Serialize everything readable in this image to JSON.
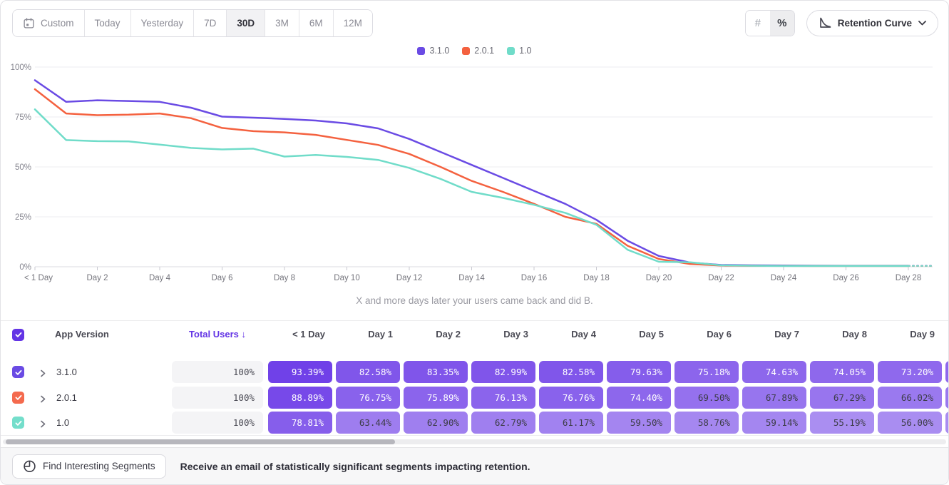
{
  "toolbar": {
    "date_ranges": [
      "Custom",
      "Today",
      "Yesterday",
      "7D",
      "30D",
      "3M",
      "6M",
      "12M"
    ],
    "selected_range": "30D",
    "count_toggle": "#",
    "percent_toggle": "%",
    "percent_selected": true,
    "chart_type_label": "Retention Curve"
  },
  "chart_data": {
    "type": "line",
    "subtitle": "X and more days later your users came back and did B.",
    "ylim": [
      0,
      100
    ],
    "y_ticks": [
      "100%",
      "75%",
      "50%",
      "25%",
      "0%"
    ],
    "x_tick_days": [
      0,
      2,
      4,
      6,
      8,
      10,
      12,
      14,
      16,
      18,
      20,
      22,
      24,
      26,
      28
    ],
    "x_tick_labels": [
      "< 1 Day",
      "Day 2",
      "Day 4",
      "Day 6",
      "Day 8",
      "Day 10",
      "Day 12",
      "Day 14",
      "Day 16",
      "Day 18",
      "Day 20",
      "Day 22",
      "Day 24",
      "Day 26",
      "Day 28"
    ],
    "grid": true,
    "legend_position": "top",
    "dashed_tail_after_day": 28,
    "series": [
      {
        "name": "3.1.0",
        "color": "#6A4BE4",
        "values": [
          93.39,
          82.58,
          83.35,
          82.99,
          82.58,
          79.63,
          75.18,
          74.63,
          74.05,
          73.2,
          71.8,
          69.3,
          64,
          57.5,
          51,
          44.5,
          38,
          31.5,
          23.5,
          13,
          5.4,
          2.1,
          0.9,
          0.7,
          0.6,
          0.55,
          0.5,
          0.5,
          0.5
        ]
      },
      {
        "name": "2.0.1",
        "color": "#F4613F",
        "values": [
          88.89,
          76.75,
          75.89,
          76.13,
          76.76,
          74.4,
          69.5,
          67.89,
          67.29,
          66.02,
          63.5,
          61,
          56.5,
          50,
          43,
          37.5,
          31.5,
          25,
          21.5,
          10.5,
          3.9,
          1.4,
          0.6,
          0.5,
          0.45,
          0.4,
          0.4,
          0.4,
          0.4
        ]
      },
      {
        "name": "1.0",
        "color": "#70DCC9",
        "values": [
          78.81,
          63.44,
          62.9,
          62.79,
          61.17,
          59.5,
          58.76,
          59.14,
          55.19,
          56,
          55,
          53.5,
          49.5,
          44,
          37.5,
          34.5,
          31,
          27,
          21,
          8.5,
          2.5,
          2.2,
          0.7,
          0.5,
          0.4,
          0.4,
          0.4,
          0.4,
          0.4
        ]
      }
    ]
  },
  "table": {
    "select_all_checked": true,
    "headers": {
      "app_version": "App Version",
      "total_users": "Total Users ↓",
      "days": [
        "< 1 Day",
        "Day 1",
        "Day 2",
        "Day 3",
        "Day 4",
        "Day 5",
        "Day 6",
        "Day 7",
        "Day 8",
        "Day 9"
      ]
    },
    "rows": [
      {
        "version": "3.1.0",
        "color": "#6A4BE4",
        "checked": true,
        "total_users": "100%",
        "values": [
          93.39,
          82.58,
          83.35,
          82.99,
          82.58,
          79.63,
          75.18,
          74.63,
          74.05,
          73.2
        ]
      },
      {
        "version": "2.0.1",
        "color": "#F46A4E",
        "checked": true,
        "total_users": "100%",
        "values": [
          88.89,
          76.75,
          75.89,
          76.13,
          76.76,
          74.4,
          69.5,
          67.89,
          67.29,
          66.02
        ]
      },
      {
        "version": "1.0",
        "color": "#74DECB",
        "checked": true,
        "total_users": "100%",
        "values": [
          78.81,
          63.44,
          62.9,
          62.79,
          61.17,
          59.5,
          58.76,
          59.14,
          55.19,
          56
        ]
      }
    ],
    "cell_base_rgb": [
      102,
      51,
      230
    ]
  },
  "footer": {
    "button_label": "Find Interesting Segments",
    "message": "Receive an email of statistically significant segments impacting retention."
  },
  "icons": {
    "custom_range": "calendar-icon",
    "count_mode": "hash-icon",
    "percent_mode": "percent-icon",
    "chart_type": "retention-curve-icon",
    "dropdown": "chevron-down-icon",
    "row_expand": "chevron-right-icon",
    "footer_button": "signal-icon"
  },
  "colors": {
    "accent_purple": "#6334E5",
    "grid": "#ECECF0",
    "axis_text": "#84848E",
    "total_cell_bg": "#F4F4F6"
  }
}
